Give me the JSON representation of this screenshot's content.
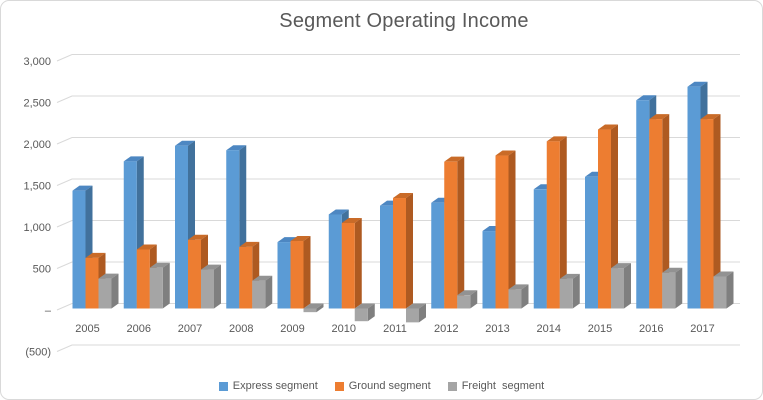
{
  "chart_data": {
    "type": "bar",
    "subtype": "3d-clustered-column",
    "title": "Segment Operating Income",
    "categories": [
      "2005",
      "2006",
      "2007",
      "2008",
      "2009",
      "2010",
      "2011",
      "2012",
      "2013",
      "2014",
      "2015",
      "2016",
      "2017"
    ],
    "series": [
      {
        "name": "Express segment",
        "color": "#5B9BD5",
        "color_top": "#4D87C2",
        "color_side": "#41719C",
        "values": [
          1414,
          1767,
          1955,
          1901,
          794,
          1127,
          1233,
          1268,
          927,
          1430,
          1581,
          2503,
          2666
        ]
      },
      {
        "name": "Ground segment",
        "color": "#ED7D31",
        "color_top": "#C96B28",
        "color_side": "#AE5A21",
        "values": [
          604,
          705,
          822,
          736,
          807,
          1024,
          1325,
          1763,
          1837,
          2008,
          2150,
          2276,
          2276
        ]
      },
      {
        "name": "Freight  segment",
        "color": "#A5A5A5",
        "color_top": "#929292",
        "color_side": "#7F7F7F",
        "values": [
          354,
          485,
          463,
          329,
          -44,
          -153,
          -167,
          153,
          225,
          351,
          481,
          425,
          380
        ]
      }
    ],
    "y_axis": {
      "min": -500,
      "max": 3000,
      "step": 500,
      "ticks": [
        {
          "value": 3000,
          "label": "3,000"
        },
        {
          "value": 2500,
          "label": "2,500"
        },
        {
          "value": 2000,
          "label": "2,000"
        },
        {
          "value": 1500,
          "label": "1,500"
        },
        {
          "value": 1000,
          "label": "1,000"
        },
        {
          "value": 500,
          "label": "500"
        },
        {
          "value": 0,
          "label": "–"
        },
        {
          "value": -500,
          "label": "(500)"
        }
      ]
    },
    "legend_position": "bottom",
    "grid": true,
    "colors": {
      "gridline": "#D9D9D9",
      "axis_text": "#595959",
      "title_text": "#595959",
      "background": "#FFFFFF",
      "border": "#D9D9D9"
    }
  }
}
